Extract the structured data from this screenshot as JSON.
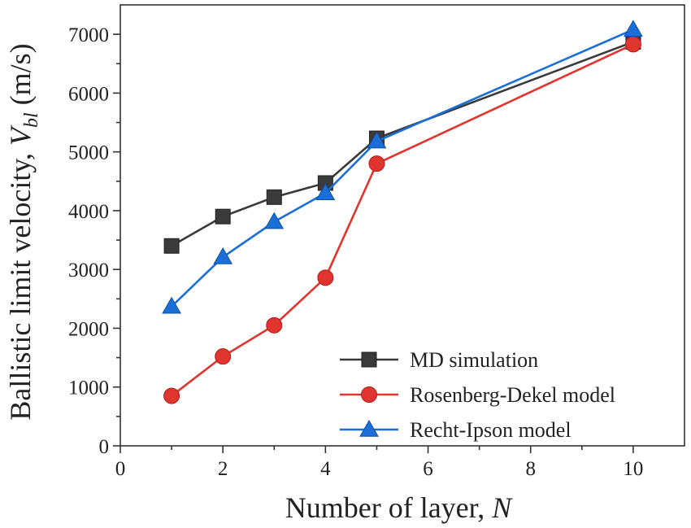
{
  "chart_data": {
    "type": "line",
    "xlabel": "Number of layer, ",
    "xlabel_var": "N",
    "ylabel": "Ballistic limit velocity, ",
    "ylabel_var": "V",
    "ylabel_sub": "bl",
    "ylabel_unit": " (m/s)",
    "xlim": [
      0,
      11
    ],
    "ylim": [
      0,
      7500
    ],
    "xticks": [
      0,
      2,
      4,
      6,
      8,
      10
    ],
    "yticks": [
      0,
      1000,
      2000,
      3000,
      4000,
      5000,
      6000,
      7000
    ],
    "grid": false,
    "legend_position": "bottom-right",
    "x": [
      1,
      2,
      3,
      4,
      5,
      10
    ],
    "series": [
      {
        "name": "MD simulation",
        "marker": "square",
        "color": "#3a3a3a",
        "values": [
          3400,
          3900,
          4230,
          4470,
          5230,
          6870
        ]
      },
      {
        "name": "Rosenberg-Dekel model",
        "marker": "circle",
        "color": "#e0342e",
        "values": [
          850,
          1520,
          2050,
          2860,
          4800,
          6830
        ]
      },
      {
        "name": "Recht-Ipson model",
        "marker": "triangle",
        "color": "#1a6fd6",
        "values": [
          2370,
          3210,
          3810,
          4300,
          5180,
          7080
        ]
      }
    ]
  }
}
